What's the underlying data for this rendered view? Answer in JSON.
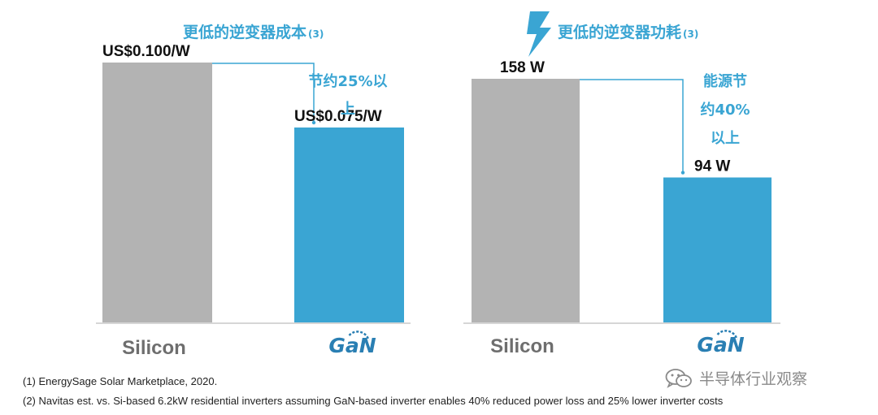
{
  "chart_data": [
    {
      "type": "bar",
      "title": "更低的逆变器成本",
      "title_note": "(3)",
      "categories": [
        "Silicon",
        "GaN"
      ],
      "values": [
        0.1,
        0.075
      ],
      "value_labels": [
        "US$0.100/W",
        "US$0.075/W"
      ],
      "ylim": [
        0,
        0.12
      ],
      "annotation": [
        "节约25%以",
        "上"
      ],
      "colors": [
        "#b3b3b3",
        "#3aa5d3"
      ]
    },
    {
      "type": "bar",
      "title": "更低的逆变器功耗",
      "title_note": "(3)",
      "title_icon": "lightning-bolt-icon",
      "categories": [
        "Silicon",
        "GaN"
      ],
      "values": [
        158,
        94
      ],
      "value_labels": [
        "158 W",
        "94 W"
      ],
      "ylim": [
        0,
        200
      ],
      "annotation": [
        "能源节",
        "约40%",
        "以上"
      ],
      "colors": [
        "#b3b3b3",
        "#3aa5d3"
      ]
    }
  ],
  "footnotes": [
    "(1) EnergySage Solar Marketplace, 2020.",
    "(2) Navitas est. vs. Si-based 6.2kW residential inverters assuming GaN-based inverter enables 40% reduced power loss and 25% lower inverter costs"
  ],
  "watermark": {
    "text": "半导体行业观察",
    "icon": "wechat-icon"
  },
  "colors": {
    "accent": "#3aa5d3",
    "silicon": "#b3b3b3",
    "axis": "#c8c8c8"
  }
}
